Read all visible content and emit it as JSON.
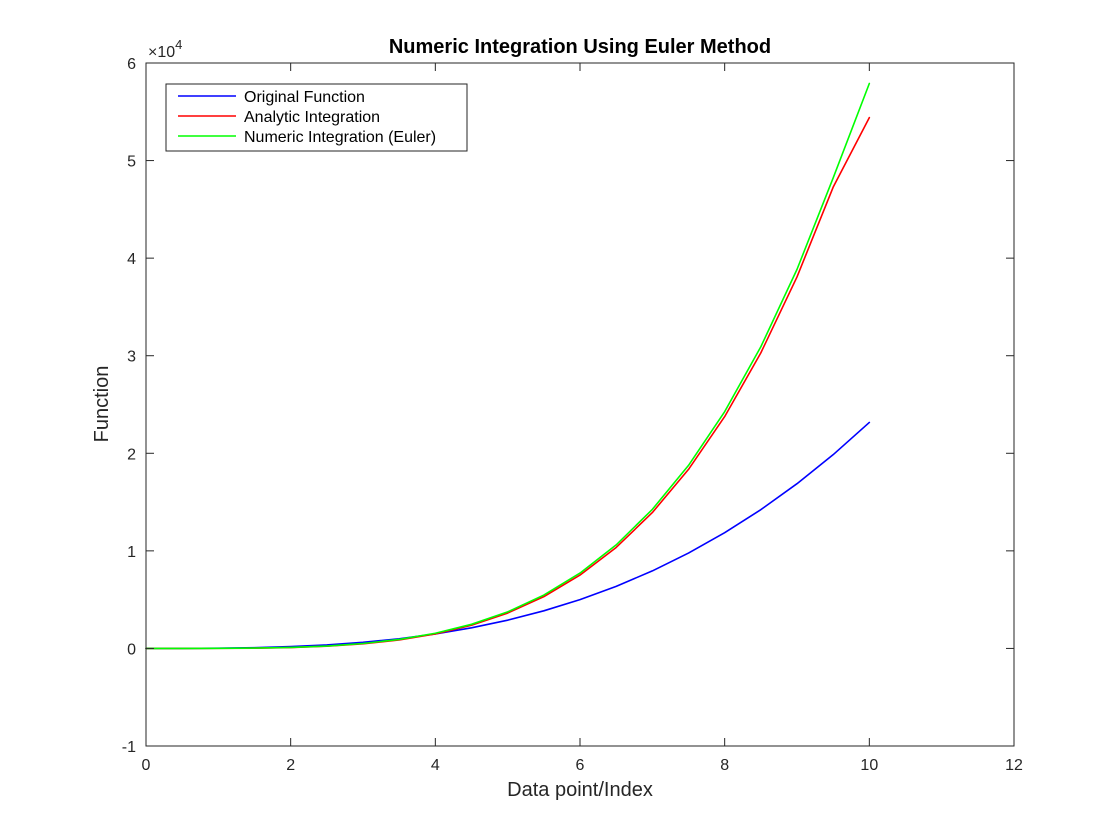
{
  "chart_data": {
    "type": "line",
    "title": "Numeric Integration Using Euler Method",
    "xlabel": "Data point/Index",
    "ylabel": "Function",
    "xlim": [
      0,
      12
    ],
    "ylim": [
      -10000,
      60000
    ],
    "x_ticks": [
      0,
      2,
      4,
      6,
      8,
      10,
      12
    ],
    "x_tick_labels": [
      "0",
      "2",
      "4",
      "6",
      "8",
      "10",
      "12"
    ],
    "y_ticks": [
      -10000,
      0,
      10000,
      20000,
      30000,
      40000,
      50000,
      60000
    ],
    "y_tick_labels": [
      "-1",
      "0",
      "1",
      "2",
      "3",
      "4",
      "5",
      "6"
    ],
    "y_exponent_label": "×10",
    "y_exponent_power": "4",
    "grid": false,
    "legend_position": "top-left",
    "x": [
      0,
      0.5,
      1,
      1.5,
      2,
      2.5,
      3,
      3.5,
      4,
      4.5,
      5,
      5.5,
      6,
      6.5,
      7,
      7.5,
      8,
      8.5,
      9,
      9.5,
      10
    ],
    "series": [
      {
        "name": "Original Function",
        "color": "#0000ff",
        "values": [
          0,
          3,
          23,
          78,
          186,
          362,
          626,
          993,
          1483,
          2111,
          2896,
          3854,
          5003,
          6361,
          7945,
          9772,
          11859,
          14224,
          16884,
          19857,
          23160
        ]
      },
      {
        "name": "Analytic Integration",
        "color": "#ff0000",
        "values": [
          0,
          0,
          6,
          29,
          93,
          227,
          470,
          870,
          1485,
          2378,
          3625,
          5306,
          7515,
          10349,
          13922,
          18349,
          23760,
          30288,
          38077,
          47275,
          54400
        ]
      },
      {
        "name": "Numeric Integration (Euler)",
        "color": "#00ff00",
        "values": [
          0,
          0,
          8,
          34,
          104,
          247,
          504,
          921,
          1555,
          2472,
          3748,
          5467,
          7719,
          10609,
          14249,
          18758,
          24268,
          30917,
          38848,
          48221,
          57900
        ]
      }
    ]
  }
}
